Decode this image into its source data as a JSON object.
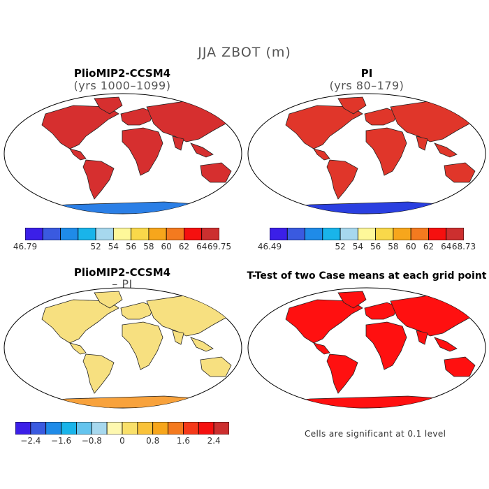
{
  "title": "JJA ZBOT (m)",
  "panels": [
    {
      "title": "PlioMIP2-CCSM4",
      "subtitle": "(yrs 1000–1099)",
      "land_color": "#d62f2f",
      "ocean_color": "#ffffff",
      "antarctica_color": "#2b7fe6"
    },
    {
      "title": "PI",
      "subtitle": "(yrs 80–179)",
      "land_color": "#e0362a",
      "ocean_color": "#ffffff",
      "antarctica_color": "#2a3fe0"
    },
    {
      "title": "PlioMIP2-CCSM4",
      "subtitle": "– PI",
      "land_color": "#f7e080",
      "ocean_color": "#ffffff",
      "antarctica_color": "#f8a23c"
    },
    {
      "title": "T-Test of two Case means at each grid point",
      "subtitle": "",
      "land_color": "#ff1010",
      "ocean_color": "#ffffff",
      "antarctica_color": "#ff1010"
    }
  ],
  "colorbars": [
    {
      "colors": [
        "#3b1fe8",
        "#3a5ae0",
        "#1f8be8",
        "#19b4ea",
        "#a7d8ee",
        "#fef89a",
        "#f9d84a",
        "#f7a61c",
        "#f47a1f",
        "#f5100f",
        "#cc2f2f"
      ],
      "labels": [
        {
          "text": "46.79",
          "pos": 0
        },
        {
          "text": "52",
          "pos": 4
        },
        {
          "text": "54",
          "pos": 5
        },
        {
          "text": "56",
          "pos": 6
        },
        {
          "text": "58",
          "pos": 7
        },
        {
          "text": "60",
          "pos": 8
        },
        {
          "text": "62",
          "pos": 9
        },
        {
          "text": "64",
          "pos": 10
        },
        {
          "text": "69.75",
          "pos": 11
        }
      ]
    },
    {
      "colors": [
        "#3b1fe8",
        "#3a5ae0",
        "#1f8be8",
        "#19b4ea",
        "#a7d8ee",
        "#fef89a",
        "#f9d84a",
        "#f7a61c",
        "#f47a1f",
        "#f5100f",
        "#cc2f2f"
      ],
      "labels": [
        {
          "text": "46.49",
          "pos": 0
        },
        {
          "text": "52",
          "pos": 4
        },
        {
          "text": "54",
          "pos": 5
        },
        {
          "text": "56",
          "pos": 6
        },
        {
          "text": "58",
          "pos": 7
        },
        {
          "text": "60",
          "pos": 8
        },
        {
          "text": "62",
          "pos": 9
        },
        {
          "text": "64",
          "pos": 10
        },
        {
          "text": "68.73",
          "pos": 11
        }
      ]
    },
    {
      "colors": [
        "#3b1fe8",
        "#3a5ae0",
        "#1f8be8",
        "#19b4ea",
        "#64c4ee",
        "#a7d8ee",
        "#fef8b0",
        "#f9e06a",
        "#f9c23a",
        "#f7a61c",
        "#f47a1f",
        "#f53a1a",
        "#f5100f",
        "#cc2f2f"
      ],
      "labels": [
        {
          "text": "−2.4",
          "pos": 1
        },
        {
          "text": "−1.6",
          "pos": 3
        },
        {
          "text": "−0.8",
          "pos": 5
        },
        {
          "text": "0",
          "pos": 7
        },
        {
          "text": "0.8",
          "pos": 9
        },
        {
          "text": "1.6",
          "pos": 11
        },
        {
          "text": "2.4",
          "pos": 13
        }
      ]
    }
  ],
  "footnote": "Cells are significant at 0.1 level"
}
